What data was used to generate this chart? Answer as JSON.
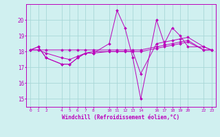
{
  "xlabel": "Windchill (Refroidissement éolien,°C)",
  "background_color": "#d0f0f0",
  "grid_color": "#a8d8d8",
  "line_color": "#bb00bb",
  "x_ticks": [
    0,
    1,
    2,
    4,
    5,
    6,
    7,
    8,
    10,
    11,
    12,
    13,
    14,
    16,
    17,
    18,
    19,
    20,
    22,
    23
  ],
  "x_tick_labels": [
    "0",
    "1",
    "2",
    "4",
    "5",
    "6",
    "7",
    "8",
    "10",
    "11",
    "12",
    "13",
    "14",
    "16",
    "17",
    "18",
    "19",
    "20",
    "22",
    "23"
  ],
  "series_x": [
    0,
    1,
    2,
    4,
    5,
    6,
    7,
    8,
    10,
    11,
    12,
    13,
    14,
    16,
    17,
    18,
    19,
    20,
    22,
    23
  ],
  "series": [
    [
      18.1,
      18.3,
      17.6,
      17.2,
      17.2,
      17.6,
      17.9,
      17.9,
      18.5,
      20.6,
      19.5,
      17.6,
      15.0,
      20.0,
      18.5,
      19.5,
      19.0,
      18.3,
      18.3,
      18.1
    ],
    [
      18.1,
      18.3,
      17.6,
      17.2,
      17.2,
      17.6,
      17.9,
      17.9,
      18.0,
      18.0,
      18.0,
      18.0,
      16.6,
      18.5,
      18.6,
      18.7,
      18.8,
      18.9,
      18.3,
      18.1
    ],
    [
      18.1,
      18.1,
      18.1,
      18.1,
      18.1,
      18.1,
      18.1,
      18.1,
      18.1,
      18.1,
      18.1,
      18.1,
      18.1,
      18.3,
      18.4,
      18.5,
      18.6,
      18.7,
      18.1,
      18.1
    ],
    [
      18.1,
      18.1,
      17.9,
      17.6,
      17.5,
      17.7,
      17.9,
      18.0,
      18.0,
      18.0,
      18.0,
      18.0,
      18.0,
      18.2,
      18.3,
      18.4,
      18.5,
      18.6,
      18.1,
      18.1
    ]
  ],
  "ylim": [
    14.5,
    21.0
  ],
  "yticks": [
    15,
    16,
    17,
    18,
    19,
    20
  ],
  "ytick_labels": [
    "15",
    "16",
    "17",
    "18",
    "19",
    "20"
  ],
  "xlim": [
    -0.5,
    23.5
  ]
}
